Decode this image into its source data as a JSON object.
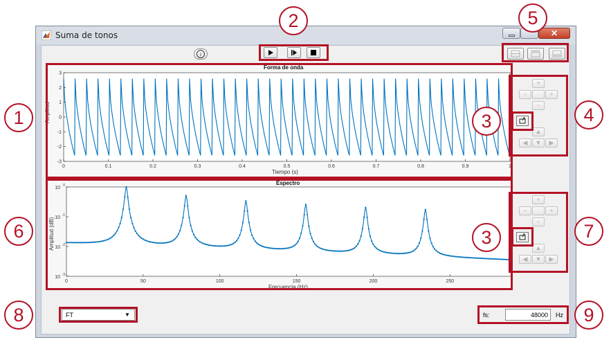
{
  "window": {
    "title": "Suma de tonos",
    "close_glyph": "✕"
  },
  "toolbar": {
    "info_icon": "info-icon",
    "play_icon": "play-icon",
    "step_icon": "play-step-icon",
    "stop_icon": "stop-icon"
  },
  "waveform": {
    "title": "Forma de onda",
    "xlabel": "Tiempo (s)",
    "ylabel": "Amplitud",
    "xticks": [
      "0",
      "0.1",
      "0.2",
      "0.3",
      "0.4",
      "0.5",
      "0.6",
      "0.7",
      "0.8",
      "0.9",
      "1"
    ],
    "yticks": [
      "3",
      "2",
      "1",
      "0",
      "-1",
      "-2",
      "-3"
    ]
  },
  "spectrum": {
    "title": "Espectro",
    "xlabel": "Frecuencia (Hz)",
    "ylabel": "Amplitud (dB)",
    "xticks": [
      "0",
      "50",
      "100",
      "150",
      "200",
      "250"
    ],
    "ytick_base": [
      "10",
      "10",
      "10",
      "10"
    ],
    "ytick_exp": [
      "0",
      "-1",
      "-2",
      "-3"
    ]
  },
  "controls": {
    "transform_select": "FT",
    "dropdown_glyph": "▼",
    "fs_label": "fs:",
    "fs_value": "48000",
    "fs_unit": "Hz"
  },
  "nav_glyphs": {
    "plus": "+",
    "minus": "−",
    "up": "▲",
    "down": "▼",
    "left": "◀",
    "right": "▶"
  },
  "callouts": [
    "1",
    "2",
    "3",
    "4",
    "5",
    "6",
    "7",
    "8",
    "9"
  ],
  "chart_data": [
    {
      "type": "line",
      "title": "Forma de onda",
      "xlabel": "Tiempo (s)",
      "ylabel": "Amplitud",
      "xlim": [
        0,
        1
      ],
      "ylim": [
        -3,
        3
      ],
      "x": [
        0,
        1
      ],
      "series": [
        {
          "description_of_shape": "sawtooth-like periodic signal",
          "cycles": 39,
          "peak": 2.6,
          "trough": -2.6
        }
      ],
      "grid": false,
      "color": "#0072bd"
    },
    {
      "type": "line",
      "title": "Espectro",
      "xlabel": "Frecuencia (Hz)",
      "ylabel": "Amplitud (dB)",
      "xlim": [
        0,
        290
      ],
      "ylim": [
        0.001,
        1
      ],
      "yscale": "log",
      "peaks": [
        {
          "x": 39,
          "y": 1.0
        },
        {
          "x": 78,
          "y": 0.5
        },
        {
          "x": 117,
          "y": 0.33
        },
        {
          "x": 156,
          "y": 0.25
        },
        {
          "x": 195,
          "y": 0.2
        },
        {
          "x": 234,
          "y": 0.17
        }
      ],
      "floor_start": 0.013,
      "floor_end": 0.0035,
      "grid": false,
      "color": "#0072bd"
    }
  ]
}
